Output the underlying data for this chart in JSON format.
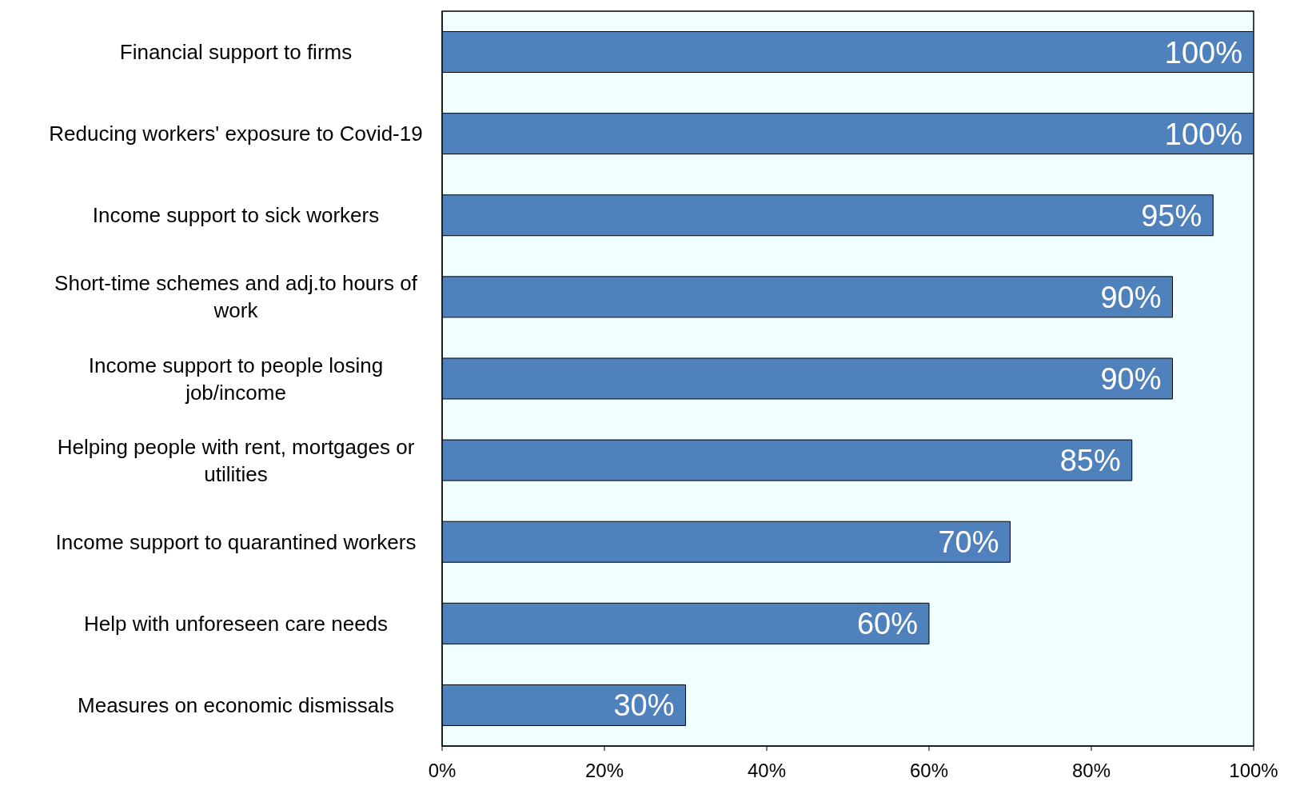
{
  "chart_data": {
    "type": "bar",
    "orientation": "horizontal",
    "categories": [
      "Financial support to firms",
      "Reducing workers' exposure to Covid-19",
      "Income support to sick workers",
      "Short-time schemes and adj.to hours of work",
      "Income support to people losing job/income",
      "Helping people with rent, mortgages or utilities",
      "Income support to quarantined workers",
      "Help with unforeseen care needs",
      "Measures on economic dismissals"
    ],
    "values": [
      100,
      100,
      95,
      90,
      90,
      85,
      70,
      60,
      30
    ],
    "value_labels": [
      "100%",
      "100%",
      "95%",
      "90%",
      "90%",
      "85%",
      "70%",
      "60%",
      "30%"
    ],
    "color": "#4f81bd",
    "xlim": [
      0,
      100
    ],
    "xticks": [
      {
        "value": 0,
        "label": "0%"
      },
      {
        "value": 20,
        "label": "20%"
      },
      {
        "value": 40,
        "label": "40%"
      },
      {
        "value": 60,
        "label": "60%"
      },
      {
        "value": 80,
        "label": "80%"
      },
      {
        "value": 100,
        "label": "100%"
      }
    ],
    "grid": false,
    "legend": false
  }
}
